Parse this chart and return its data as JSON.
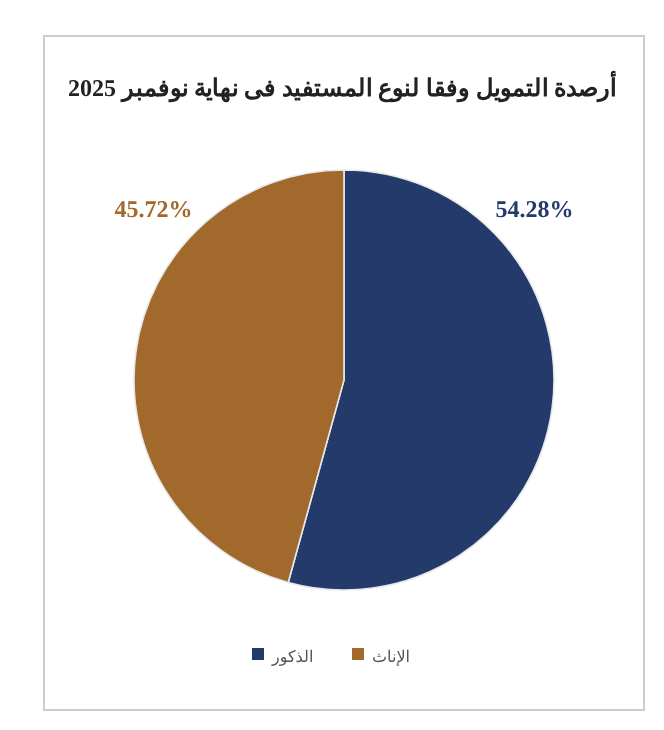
{
  "chart_data": {
    "type": "pie",
    "title": "أرصدة التمويل وفقا لنوع المستفيد فى نهاية نوفمبر 2025",
    "categories": [
      "الذكور",
      "الإناث"
    ],
    "values": [
      54.28,
      45.72
    ],
    "colors": [
      "#233a6a",
      "#a1692b"
    ],
    "value_labels": [
      "54.28%",
      "45.72%"
    ],
    "legend": "bottom"
  }
}
